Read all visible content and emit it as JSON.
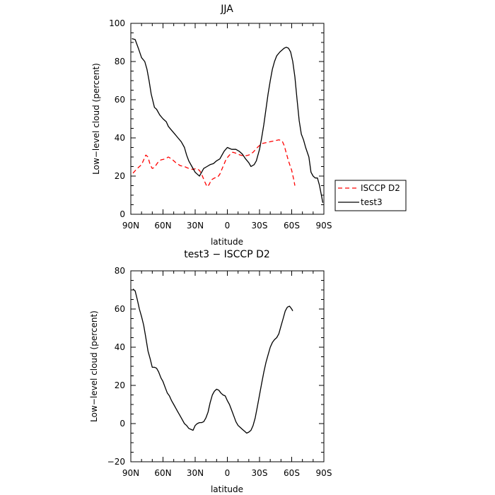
{
  "chart_data": [
    {
      "type": "line",
      "title": "JJA",
      "xlabel": "latitude",
      "ylabel": "Low−level cloud (percent)",
      "xlim": [
        90,
        -90
      ],
      "ylim": [
        0,
        100
      ],
      "x_ticks": [
        90,
        60,
        30,
        0,
        -30,
        -60,
        -90
      ],
      "x_tick_labels": [
        "90N",
        "60N",
        "30N",
        "0",
        "30S",
        "60S",
        "90S"
      ],
      "y_ticks": [
        0,
        20,
        40,
        60,
        80,
        100
      ],
      "y_tick_labels": [
        "0",
        "20",
        "40",
        "60",
        "80",
        "100"
      ],
      "legend_position": "right, outside the plot",
      "series": [
        {
          "name": "ISCCP D2",
          "color": "#ff0000",
          "style": "dashed",
          "points": [
            [
              88,
              21.5
            ],
            [
              84,
              24
            ],
            [
              80,
              26
            ],
            [
              76,
              31
            ],
            [
              74,
              30
            ],
            [
              72,
              26
            ],
            [
              70,
              24
            ],
            [
              68,
              24.5
            ],
            [
              65,
              27
            ],
            [
              62,
              28.5
            ],
            [
              58,
              29
            ],
            [
              55,
              30
            ],
            [
              52,
              29
            ],
            [
              48,
              27
            ],
            [
              44,
              25.5
            ],
            [
              40,
              25
            ],
            [
              36,
              24
            ],
            [
              32,
              23.5
            ],
            [
              29,
              24
            ],
            [
              26,
              23
            ],
            [
              24,
              21
            ],
            [
              21,
              17
            ],
            [
              19,
              14.5
            ],
            [
              17,
              15.5
            ],
            [
              15,
              18
            ],
            [
              12,
              19
            ],
            [
              9,
              19.5
            ],
            [
              7,
              21
            ],
            [
              4,
              25
            ],
            [
              1,
              29
            ],
            [
              -2,
              31
            ],
            [
              -5,
              32.5
            ],
            [
              -8,
              32
            ],
            [
              -12,
              31
            ],
            [
              -16,
              30.5
            ],
            [
              -20,
              31
            ],
            [
              -24,
              32.5
            ],
            [
              -28,
              35
            ],
            [
              -32,
              37
            ],
            [
              -36,
              37.5
            ],
            [
              -40,
              38
            ],
            [
              -44,
              38.5
            ],
            [
              -48,
              39
            ],
            [
              -51,
              38.5
            ],
            [
              -53,
              36
            ],
            [
              -55,
              32
            ],
            [
              -57,
              28
            ],
            [
              -60,
              23
            ],
            [
              -62,
              18
            ],
            [
              -63,
              15
            ]
          ]
        },
        {
          "name": "test3",
          "color": "#000000",
          "style": "solid",
          "points": [
            [
              89,
              92
            ],
            [
              86,
              91.5
            ],
            [
              83,
              87
            ],
            [
              80,
              82
            ],
            [
              77,
              80
            ],
            [
              75,
              76
            ],
            [
              73,
              70
            ],
            [
              71,
              63
            ],
            [
              68,
              56
            ],
            [
              66,
              55
            ],
            [
              63,
              52
            ],
            [
              60,
              50
            ],
            [
              57,
              48.5
            ],
            [
              55,
              46
            ],
            [
              52,
              44
            ],
            [
              49,
              42
            ],
            [
              46,
              40
            ],
            [
              43,
              38
            ],
            [
              40,
              35
            ],
            [
              38,
              31
            ],
            [
              36,
              28
            ],
            [
              33,
              25
            ],
            [
              30,
              22
            ],
            [
              28,
              21
            ],
            [
              26,
              20
            ],
            [
              24,
              22
            ],
            [
              22,
              24
            ],
            [
              19,
              25
            ],
            [
              16,
              26
            ],
            [
              13,
              26.5
            ],
            [
              10,
              28
            ],
            [
              7,
              29
            ],
            [
              5,
              31
            ],
            [
              3,
              33
            ],
            [
              0,
              35
            ],
            [
              -2,
              34.5
            ],
            [
              -4,
              34
            ],
            [
              -6,
              34
            ],
            [
              -8,
              34
            ],
            [
              -11,
              33
            ],
            [
              -14,
              31.5
            ],
            [
              -17,
              29
            ],
            [
              -20,
              27
            ],
            [
              -22,
              25
            ],
            [
              -25,
              26
            ],
            [
              -27,
              28
            ],
            [
              -30,
              34
            ],
            [
              -32,
              40
            ],
            [
              -34,
              47
            ],
            [
              -36,
              55
            ],
            [
              -38,
              63
            ],
            [
              -40,
              70
            ],
            [
              -42,
              76
            ],
            [
              -44,
              80
            ],
            [
              -46,
              83
            ],
            [
              -49,
              85
            ],
            [
              -51,
              86
            ],
            [
              -53,
              87
            ],
            [
              -55,
              87.5
            ],
            [
              -57,
              87
            ],
            [
              -59,
              85
            ],
            [
              -61,
              80
            ],
            [
              -63,
              72
            ],
            [
              -65,
              60
            ],
            [
              -67,
              49
            ],
            [
              -69,
              42
            ],
            [
              -71,
              39
            ],
            [
              -73,
              35
            ],
            [
              -76,
              30
            ],
            [
              -78,
              22
            ],
            [
              -80,
              20
            ],
            [
              -82,
              19
            ],
            [
              -84,
              19
            ],
            [
              -86,
              15
            ],
            [
              -88,
              9
            ],
            [
              -89,
              6
            ]
          ]
        }
      ]
    },
    {
      "type": "line",
      "title": "test3 − ISCCP D2",
      "xlabel": "latitude",
      "ylabel": "Low−level cloud (percent)",
      "xlim": [
        90,
        -90
      ],
      "ylim": [
        -20,
        80
      ],
      "x_ticks": [
        90,
        60,
        30,
        0,
        -30,
        -60,
        -90
      ],
      "x_tick_labels": [
        "90N",
        "60N",
        "30N",
        "0",
        "30S",
        "60S",
        "90S"
      ],
      "y_ticks": [
        -20,
        0,
        20,
        40,
        60,
        80
      ],
      "y_tick_labels": [
        "−20",
        "0",
        "20",
        "40",
        "60",
        "80"
      ],
      "series": [
        {
          "color": "#000000",
          "style": "solid",
          "points": [
            [
              88,
              70.5
            ],
            [
              86,
              69.5
            ],
            [
              84,
              65
            ],
            [
              82,
              60
            ],
            [
              80,
              56
            ],
            [
              78,
              51.5
            ],
            [
              76,
              45
            ],
            [
              74,
              38
            ],
            [
              72,
              34
            ],
            [
              70,
              29.5
            ],
            [
              68,
              29.5
            ],
            [
              66,
              29
            ],
            [
              64,
              27
            ],
            [
              62,
              24
            ],
            [
              60,
              22
            ],
            [
              58,
              19
            ],
            [
              56,
              16
            ],
            [
              54,
              14.5
            ],
            [
              52,
              12
            ],
            [
              50,
              10
            ],
            [
              48,
              8
            ],
            [
              46,
              6
            ],
            [
              44,
              4
            ],
            [
              42,
              2
            ],
            [
              40,
              0
            ],
            [
              38,
              -1
            ],
            [
              36,
              -2.5
            ],
            [
              34,
              -3
            ],
            [
              32,
              -3.5
            ],
            [
              30,
              -1
            ],
            [
              28,
              0
            ],
            [
              26,
              0.5
            ],
            [
              24,
              0.5
            ],
            [
              22,
              1
            ],
            [
              20,
              3
            ],
            [
              18,
              6
            ],
            [
              16,
              11
            ],
            [
              14,
              15
            ],
            [
              12,
              17
            ],
            [
              10,
              18
            ],
            [
              8,
              17.5
            ],
            [
              6,
              16
            ],
            [
              4,
              15
            ],
            [
              2,
              14.5
            ],
            [
              0,
              12
            ],
            [
              -2,
              10
            ],
            [
              -4,
              7
            ],
            [
              -6,
              4
            ],
            [
              -8,
              1
            ],
            [
              -10,
              -1
            ],
            [
              -12,
              -2
            ],
            [
              -14,
              -3
            ],
            [
              -16,
              -4
            ],
            [
              -18,
              -5
            ],
            [
              -20,
              -4.5
            ],
            [
              -22,
              -3.5
            ],
            [
              -24,
              -1
            ],
            [
              -26,
              3
            ],
            [
              -28,
              9
            ],
            [
              -30,
              15
            ],
            [
              -32,
              21
            ],
            [
              -34,
              27
            ],
            [
              -36,
              32
            ],
            [
              -38,
              36
            ],
            [
              -40,
              40
            ],
            [
              -42,
              42.5
            ],
            [
              -44,
              44
            ],
            [
              -46,
              45
            ],
            [
              -48,
              47
            ],
            [
              -50,
              51
            ],
            [
              -52,
              55
            ],
            [
              -54,
              59
            ],
            [
              -56,
              61
            ],
            [
              -58,
              61.5
            ],
            [
              -60,
              60
            ],
            [
              -61,
              59
            ]
          ]
        }
      ]
    }
  ]
}
